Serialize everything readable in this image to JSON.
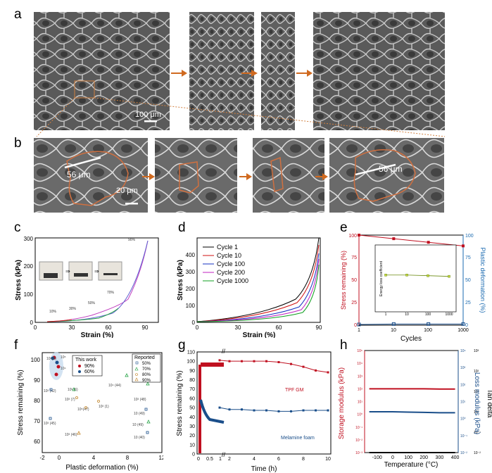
{
  "panels": {
    "a": {
      "label": "a",
      "scale_bar": "100 μm"
    },
    "b": {
      "label": "b",
      "scale_bar": "20 μm",
      "measure": "56 μm"
    },
    "c": {
      "label": "c",
      "chart_data": {
        "type": "line",
        "xlabel": "Strain (%)",
        "ylabel": "Stress (kPa)",
        "xlim": [
          0,
          100
        ],
        "ylim": [
          0,
          300
        ],
        "xticks": [
          "0",
          "30",
          "60",
          "90"
        ],
        "yticks": [
          "0",
          "100",
          "200",
          "300"
        ],
        "annotations": [
          "10%",
          "30%",
          "50%",
          "70%",
          "90%"
        ]
      }
    },
    "d": {
      "label": "d",
      "chart_data": {
        "type": "line",
        "xlabel": "Strain (%)",
        "ylabel": "Stress (kPa)",
        "xlim": [
          0,
          90
        ],
        "ylim": [
          0,
          500
        ],
        "xticks": [
          "0",
          "30",
          "60",
          "90"
        ],
        "yticks": [
          "0",
          "100",
          "200",
          "300",
          "400"
        ],
        "series": [
          {
            "name": "Cycle 1",
            "color": "#000000"
          },
          {
            "name": "Cycle 10",
            "color": "#d01010"
          },
          {
            "name": "Cycle 100",
            "color": "#1530c0"
          },
          {
            "name": "Cycle 200",
            "color": "#c020c0"
          },
          {
            "name": "Cycle 1000",
            "color": "#10a020"
          }
        ]
      }
    },
    "e": {
      "label": "e",
      "chart_data": {
        "type": "line",
        "xlabel": "Cycles",
        "ylabel": "Stress remaining (%)",
        "y2label": "Plastic deformation (%)",
        "xticks": [
          "1",
          "10",
          "100",
          "1000"
        ],
        "yticks": [
          "0",
          "25",
          "50",
          "75",
          "100"
        ],
        "y2ticks": [
          "0",
          "25",
          "50",
          "75",
          "100"
        ],
        "stress": {
          "x": [
            1,
            10,
            100,
            1000
          ],
          "y": [
            100,
            96,
            92,
            88
          ]
        },
        "plastic": {
          "x": [
            1,
            10,
            100,
            1000
          ],
          "y": [
            0,
            0.5,
            0.5,
            0.5
          ]
        },
        "inset": {
          "ylabel": "Energy loss coefficient",
          "xticks": [
            "1",
            "10",
            "100",
            "1000"
          ],
          "y": [
            0.55,
            0.55,
            0.54,
            0.53
          ]
        }
      }
    },
    "f": {
      "label": "f",
      "chart_data": {
        "type": "scatter",
        "xlabel": "Plastic deformation (%)",
        "ylabel": "Stress remaining (%)",
        "xlim": [
          -2,
          12
        ],
        "ylim": [
          55,
          102
        ],
        "xticks": [
          "-2",
          "0",
          "4",
          "8",
          "12"
        ],
        "yticks": [
          "60",
          "70",
          "80",
          "90",
          "100"
        ],
        "legend_this": {
          "title": "This work",
          "items": [
            "90%",
            "60%"
          ]
        },
        "legend_reported": {
          "title": "Reported",
          "items": [
            "50%",
            "70%",
            "80%",
            "90%"
          ]
        },
        "points_text": [
          "10⁵(1)",
          "10⁵",
          "10⁴",
          "10³ (42)",
          "10³ (6)",
          "10³ (7)",
          "10⁵(47)",
          "10³ (1)",
          "10⁴ (44)",
          "10³ (48)",
          "10 (49)",
          "10 (49)",
          "10 (40)",
          "10³ (45)",
          "10³ (46)"
        ]
      }
    },
    "g": {
      "label": "g",
      "chart_data": {
        "type": "line",
        "xlabel": "Time (h)",
        "ylabel": "Stress remaining (%)",
        "ylim": [
          0,
          110
        ],
        "xticks": [
          "0",
          "0.5",
          "1",
          "2",
          "4",
          "6",
          "8",
          "10"
        ],
        "yticks": [
          "0",
          "10",
          "20",
          "30",
          "40",
          "50",
          "60",
          "70",
          "80",
          "90",
          "100",
          "110"
        ],
        "series": [
          {
            "name": "TPF GM",
            "color": "#c01020",
            "x": [
              1.2,
              2,
              3,
              4,
              5,
              6,
              7,
              8,
              9,
              10
            ],
            "y": [
              101,
              100,
              100,
              100,
              100,
              99,
              97,
              94,
              90,
              88
            ]
          },
          {
            "name": "Melamine foam",
            "color": "#1a4e8a",
            "x": [
              1.2,
              2,
              3,
              4,
              5,
              6,
              7,
              8,
              9,
              10
            ],
            "y": [
              50,
              48,
              48,
              47,
              47,
              46,
              46,
              47,
              47,
              47
            ]
          }
        ]
      }
    },
    "h": {
      "label": "h",
      "chart_data": {
        "type": "line",
        "xlabel": "Temperature (°C)",
        "ylabel": "Storage modulus (kPa)",
        "y2label": "Loss modulus (kPa)",
        "y3label": "Tan delta",
        "xticks": [
          "-100",
          "0",
          "100",
          "200",
          "300",
          "400"
        ],
        "yticks": [
          "10⁻³",
          "10⁻²",
          "10⁻¹",
          "10⁰",
          "10¹",
          "10²",
          "10³",
          "10⁴",
          "10⁵"
        ],
        "y2ticks": [
          "10⁻²",
          "10⁻¹",
          "10⁰",
          "10¹",
          "10²",
          "10³",
          "10⁴"
        ],
        "y3ticks": [
          "10⁻²",
          "10⁻¹",
          "10⁰",
          "10¹",
          "10²",
          "10³"
        ],
        "storage": {
          "x": [
            -150,
            0,
            100,
            200,
            300,
            400
          ],
          "y": [
            100,
            100,
            100,
            100,
            95,
            95
          ]
        },
        "loss": {
          "x": [
            -150,
            0,
            100,
            200,
            300,
            400
          ],
          "y": [
            2.5,
            2.5,
            2.4,
            2.3,
            2.2,
            2.2
          ]
        },
        "tan": {
          "x": [
            -150,
            0,
            100,
            200,
            300,
            400
          ],
          "y": [
            0.01,
            0.01,
            0.01,
            0.01,
            0.01,
            0.01
          ]
        }
      }
    }
  }
}
